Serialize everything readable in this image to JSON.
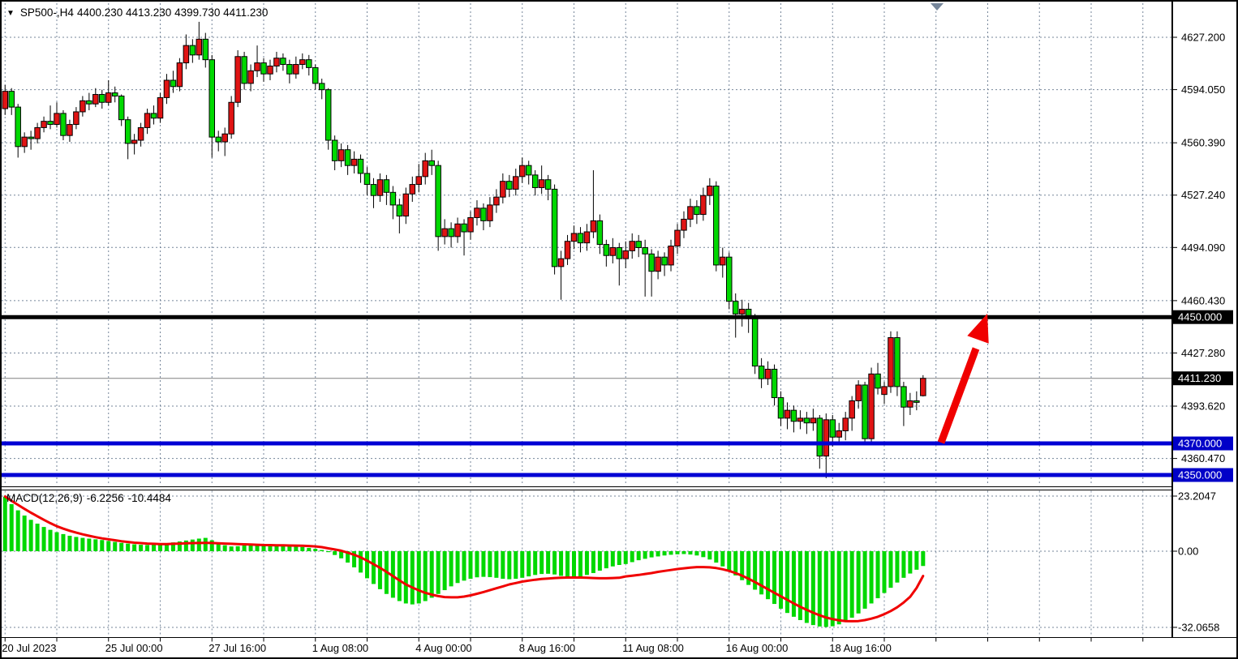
{
  "window": {
    "title_symbol": "SP500-,H4",
    "title_ohlc": "4400.230 4413.230 4399.730 4411.230"
  },
  "colors": {
    "background": "#ffffff",
    "bull": "#e01414",
    "bear": "#00d800",
    "wick": "#000000",
    "grid": "#76869a",
    "text": "#000000",
    "signal_line": "#f00000",
    "histogram": "#00d800",
    "resistance_line": "#000000",
    "support_line": "#0000d4",
    "current_price_line": "#808080",
    "badge_black": "#000000",
    "badge_blue": "#0000c8",
    "arrow": "#f00000",
    "shift_marker": "#76869a"
  },
  "price_axis": {
    "ticks": [
      {
        "text": "4627.200",
        "value": 4627.2
      },
      {
        "text": "4594.050",
        "value": 4594.05
      },
      {
        "text": "4560.390",
        "value": 4560.39
      },
      {
        "text": "4527.240",
        "value": 4527.24
      },
      {
        "text": "4494.090",
        "value": 4494.09
      },
      {
        "text": "4460.430",
        "value": 4460.43
      },
      {
        "text": "4427.280",
        "value": 4427.28
      },
      {
        "text": "4393.620",
        "value": 4393.62
      },
      {
        "text": "4360.470",
        "value": 4360.47
      }
    ],
    "badges": [
      {
        "text": "4450.000",
        "value": 4450.0,
        "bg": "#000000"
      },
      {
        "text": "4411.230",
        "value": 4411.23,
        "bg": "#000000"
      },
      {
        "text": "4370.000",
        "value": 4370.0,
        "bg": "#0000c8"
      },
      {
        "text": "4350.000",
        "value": 4350.0,
        "bg": "#0000c8"
      }
    ]
  },
  "time_axis": {
    "labels": [
      {
        "text": "20 Jul 2023",
        "grid": 0
      },
      {
        "text": "25 Jul 00:00",
        "grid": 2
      },
      {
        "text": "27 Jul 16:00",
        "grid": 4
      },
      {
        "text": "1 Aug 08:00",
        "grid": 6
      },
      {
        "text": "4 Aug 00:00",
        "grid": 8
      },
      {
        "text": "8 Aug 16:00",
        "grid": 10
      },
      {
        "text": "11 Aug 08:00",
        "grid": 12
      },
      {
        "text": "16 Aug 00:00",
        "grid": 14
      },
      {
        "text": "18 Aug 16:00",
        "grid": 16
      }
    ]
  },
  "macd_panel": {
    "name": "MACD(12,26,9)",
    "macd_value": "-6.2256",
    "signal_value": "-10.4484",
    "axis_ticks": [
      {
        "text": "23.2047",
        "value": 23.2047
      },
      {
        "text": "0.00",
        "value": 0
      },
      {
        "text": "-32.0658",
        "value": -32.0658
      }
    ]
  },
  "chart_data": {
    "type": "candlestick",
    "symbol": "SP500-",
    "timeframe": "H4",
    "title": "SP500-,H4 4400.230 4413.230 4399.730 4411.230",
    "current_bar": {
      "open": 4400.23,
      "high": 4413.23,
      "low": 4399.73,
      "close": 4411.23
    },
    "price_range_shown": [
      4350.0,
      4627.2
    ],
    "levels": [
      {
        "name": "resistance",
        "value": 4450.0,
        "color": "#000000",
        "thickness": 5
      },
      {
        "name": "support-upper",
        "value": 4370.0,
        "color": "#0000d4",
        "thickness": 5
      },
      {
        "name": "support-lower",
        "value": 4350.0,
        "color": "#0000d4",
        "thickness": 5
      },
      {
        "name": "current-price",
        "value": 4411.23,
        "color": "#808080",
        "thickness": 1
      }
    ],
    "annotation_arrow": {
      "from_price": 4372,
      "to_price": 4450,
      "color": "#f00000"
    },
    "bars": [
      [
        4582,
        4597,
        4578,
        4593
      ],
      [
        4593,
        4595,
        4578,
        4583
      ],
      [
        4583,
        4585,
        4551,
        4558
      ],
      [
        4558,
        4567,
        4554,
        4564
      ],
      [
        4564,
        4568,
        4556,
        4563
      ],
      [
        4563,
        4573,
        4560,
        4570
      ],
      [
        4570,
        4577,
        4567,
        4574
      ],
      [
        4574,
        4584,
        4569,
        4572
      ],
      [
        4572,
        4586,
        4570,
        4579
      ],
      [
        4579,
        4581,
        4562,
        4565
      ],
      [
        4565,
        4575,
        4561,
        4572
      ],
      [
        4572,
        4583,
        4569,
        4580
      ],
      [
        4580,
        4590,
        4577,
        4587
      ],
      [
        4587,
        4592,
        4581,
        4585
      ],
      [
        4585,
        4595,
        4583,
        4591
      ],
      [
        4591,
        4594,
        4582,
        4586
      ],
      [
        4586,
        4600,
        4584,
        4592
      ],
      [
        4592,
        4596,
        4586,
        4590
      ],
      [
        4590,
        4591,
        4571,
        4575
      ],
      [
        4575,
        4577,
        4550,
        4560
      ],
      [
        4560,
        4566,
        4553,
        4562
      ],
      [
        4562,
        4573,
        4558,
        4570
      ],
      [
        4570,
        4582,
        4566,
        4579
      ],
      [
        4579,
        4584,
        4572,
        4576
      ],
      [
        4576,
        4592,
        4573,
        4589
      ],
      [
        4589,
        4604,
        4585,
        4600
      ],
      [
        4600,
        4606,
        4592,
        4596
      ],
      [
        4596,
        4614,
        4593,
        4611
      ],
      [
        4611,
        4629,
        4607,
        4622
      ],
      [
        4622,
        4626,
        4611,
        4616
      ],
      [
        4616,
        4637,
        4613,
        4626
      ],
      [
        4626,
        4630,
        4608,
        4613
      ],
      [
        4613,
        4616,
        4551,
        4564
      ],
      [
        4564,
        4568,
        4555,
        4561
      ],
      [
        4561,
        4570,
        4552,
        4566
      ],
      [
        4566,
        4590,
        4563,
        4586
      ],
      [
        4586,
        4619,
        4583,
        4615
      ],
      [
        4615,
        4618,
        4594,
        4598
      ],
      [
        4598,
        4610,
        4593,
        4606
      ],
      [
        4606,
        4622,
        4602,
        4611
      ],
      [
        4611,
        4614,
        4599,
        4604
      ],
      [
        4604,
        4613,
        4600,
        4609
      ],
      [
        4609,
        4618,
        4605,
        4614
      ],
      [
        4614,
        4617,
        4606,
        4610
      ],
      [
        4610,
        4613,
        4598,
        4604
      ],
      [
        4604,
        4615,
        4601,
        4610
      ],
      [
        4610,
        4617,
        4607,
        4613
      ],
      [
        4613,
        4616,
        4603,
        4608
      ],
      [
        4608,
        4610,
        4594,
        4598
      ],
      [
        4598,
        4601,
        4588,
        4594
      ],
      [
        4594,
        4595,
        4556,
        4562
      ],
      [
        4562,
        4565,
        4543,
        4549
      ],
      [
        4549,
        4560,
        4545,
        4556
      ],
      [
        4556,
        4559,
        4540,
        4546
      ],
      [
        4546,
        4555,
        4541,
        4550
      ],
      [
        4550,
        4553,
        4535,
        4541
      ],
      [
        4541,
        4545,
        4527,
        4534
      ],
      [
        4534,
        4538,
        4519,
        4527
      ],
      [
        4527,
        4541,
        4523,
        4537
      ],
      [
        4537,
        4540,
        4521,
        4529
      ],
      [
        4529,
        4533,
        4512,
        4521
      ],
      [
        4521,
        4525,
        4503,
        4514
      ],
      [
        4514,
        4532,
        4509,
        4528
      ],
      [
        4528,
        4539,
        4523,
        4534
      ],
      [
        4534,
        4547,
        4529,
        4539
      ],
      [
        4539,
        4554,
        4534,
        4549
      ],
      [
        4549,
        4556,
        4540,
        4546
      ],
      [
        4546,
        4549,
        4492,
        4501
      ],
      [
        4501,
        4512,
        4496,
        4506
      ],
      [
        4506,
        4510,
        4494,
        4501
      ],
      [
        4501,
        4513,
        4497,
        4509
      ],
      [
        4509,
        4512,
        4489,
        4504
      ],
      [
        4504,
        4517,
        4499,
        4513
      ],
      [
        4513,
        4524,
        4508,
        4519
      ],
      [
        4519,
        4522,
        4505,
        4511
      ],
      [
        4511,
        4526,
        4507,
        4521
      ],
      [
        4521,
        4531,
        4516,
        4526
      ],
      [
        4526,
        4541,
        4522,
        4536
      ],
      [
        4536,
        4540,
        4526,
        4531
      ],
      [
        4531,
        4544,
        4527,
        4539
      ],
      [
        4539,
        4551,
        4535,
        4546
      ],
      [
        4546,
        4549,
        4534,
        4540
      ],
      [
        4540,
        4543,
        4527,
        4532
      ],
      [
        4532,
        4546,
        4528,
        4537
      ],
      [
        4537,
        4540,
        4524,
        4531
      ],
      [
        4531,
        4534,
        4477,
        4482
      ],
      [
        4482,
        4492,
        4461,
        4487
      ],
      [
        4487,
        4502,
        4483,
        4498
      ],
      [
        4498,
        4508,
        4493,
        4503
      ],
      [
        4503,
        4507,
        4491,
        4497
      ],
      [
        4497,
        4509,
        4492,
        4504
      ],
      [
        4504,
        4543,
        4500,
        4511
      ],
      [
        4511,
        4515,
        4490,
        4496
      ],
      [
        4496,
        4499,
        4482,
        4489
      ],
      [
        4489,
        4500,
        4484,
        4494
      ],
      [
        4494,
        4497,
        4470,
        4487
      ],
      [
        4487,
        4498,
        4481,
        4492
      ],
      [
        4492,
        4503,
        4487,
        4498
      ],
      [
        4498,
        4502,
        4488,
        4494
      ],
      [
        4494,
        4499,
        4463,
        4490
      ],
      [
        4490,
        4493,
        4463,
        4479
      ],
      [
        4479,
        4492,
        4474,
        4488
      ],
      [
        4488,
        4491,
        4476,
        4483
      ],
      [
        4483,
        4499,
        4479,
        4495
      ],
      [
        4495,
        4509,
        4490,
        4505
      ],
      [
        4505,
        4517,
        4500,
        4512
      ],
      [
        4512,
        4525,
        4507,
        4520
      ],
      [
        4520,
        4524,
        4509,
        4515
      ],
      [
        4515,
        4532,
        4511,
        4527
      ],
      [
        4527,
        4538,
        4521,
        4533
      ],
      [
        4533,
        4536,
        4479,
        4483
      ],
      [
        4483,
        4494,
        4475,
        4488
      ],
      [
        4488,
        4491,
        4455,
        4460
      ],
      [
        4460,
        4465,
        4437,
        4452
      ],
      [
        4452,
        4461,
        4444,
        4455
      ],
      [
        4455,
        4459,
        4440,
        4449
      ],
      [
        4449,
        4452,
        4414,
        4419
      ],
      [
        4419,
        4424,
        4405,
        4411
      ],
      [
        4411,
        4422,
        4407,
        4417
      ],
      [
        4417,
        4420,
        4394,
        4399
      ],
      [
        4399,
        4403,
        4381,
        4386
      ],
      [
        4386,
        4396,
        4379,
        4391
      ],
      [
        4391,
        4394,
        4377,
        4384
      ],
      [
        4384,
        4391,
        4379,
        4386
      ],
      [
        4386,
        4390,
        4376,
        4383
      ],
      [
        4383,
        4392,
        4378,
        4386
      ],
      [
        4386,
        4388,
        4354,
        4362
      ],
      [
        4362,
        4389,
        4348,
        4385
      ],
      [
        4385,
        4388,
        4368,
        4374
      ],
      [
        4374,
        4383,
        4370,
        4378
      ],
      [
        4378,
        4390,
        4372,
        4386
      ],
      [
        4386,
        4400,
        4378,
        4397
      ],
      [
        4397,
        4410,
        4392,
        4407
      ],
      [
        4407,
        4409,
        4371,
        4373
      ],
      [
        4373,
        4418,
        4371,
        4414
      ],
      [
        4414,
        4421,
        4401,
        4405
      ],
      [
        4401,
        4409,
        4395,
        4406
      ],
      [
        4406,
        4441,
        4402,
        4437
      ],
      [
        4437,
        4441,
        4400,
        4406
      ],
      [
        4406,
        4409,
        4381,
        4393
      ],
      [
        4393,
        4402,
        4388,
        4397
      ],
      [
        4397,
        4403,
        4391,
        4396
      ],
      [
        4400.23,
        4413.23,
        4399.73,
        4411.23
      ]
    ],
    "macd": {
      "type": "histogram+line",
      "params": [
        12,
        26,
        9
      ],
      "histogram": [
        22.9,
        19.8,
        17.2,
        15.0,
        13.2,
        11.6,
        10.2,
        9.0,
        8.0,
        7.2,
        6.5,
        6.0,
        5.6,
        5.3,
        5.0,
        4.7,
        4.3,
        3.9,
        3.5,
        3.2,
        2.9,
        2.7,
        2.6,
        2.7,
        2.9,
        3.3,
        3.7,
        4.1,
        4.5,
        4.9,
        5.3,
        5.6,
        4.6,
        3.4,
        2.5,
        2.0,
        2.1,
        2.4,
        2.6,
        2.8,
        2.9,
        2.9,
        2.8,
        2.6,
        2.4,
        2.1,
        1.8,
        1.4,
        1.0,
        0.5,
        -0.4,
        -1.6,
        -3.0,
        -4.8,
        -6.8,
        -9.0,
        -11.4,
        -13.8,
        -16.0,
        -18.0,
        -19.6,
        -21.0,
        -22.0,
        -22.4,
        -22.0,
        -21.0,
        -19.6,
        -18.0,
        -16.4,
        -14.8,
        -13.4,
        -12.4,
        -11.6,
        -11.0,
        -10.8,
        -10.9,
        -11.2,
        -11.6,
        -11.8,
        -11.6,
        -11.2,
        -10.6,
        -10.0,
        -9.6,
        -9.5,
        -9.8,
        -10.4,
        -10.8,
        -10.9,
        -10.6,
        -10.0,
        -9.2,
        -8.2,
        -7.2,
        -6.4,
        -5.8,
        -5.4,
        -4.6,
        -3.8,
        -3.2,
        -2.6,
        -2.2,
        -1.8,
        -1.5,
        -1.3,
        -1.2,
        -1.4,
        -1.8,
        -2.5,
        -3.5,
        -4.8,
        -6.4,
        -8.2,
        -10.2,
        -12.2,
        -14.2,
        -16.2,
        -18.2,
        -20.2,
        -22.2,
        -24.2,
        -26.0,
        -27.6,
        -29.0,
        -30.2,
        -31.1,
        -31.7,
        -31.9,
        -31.6,
        -30.8,
        -29.6,
        -28.0,
        -26.2,
        -24.2,
        -22.0,
        -19.8,
        -17.6,
        -15.4,
        -13.2,
        -11.2,
        -9.4,
        -7.8,
        -6.2256
      ],
      "signal": [
        23.0,
        21.2,
        19.5,
        17.8,
        16.2,
        14.7,
        13.2,
        11.8,
        10.5,
        9.5,
        8.6,
        7.8,
        7.1,
        6.5,
        5.9,
        5.4,
        5.0,
        4.6,
        4.2,
        3.9,
        3.6,
        3.4,
        3.2,
        3.1,
        3.0,
        3.0,
        3.1,
        3.2,
        3.3,
        3.4,
        3.45,
        3.5,
        3.45,
        3.3,
        3.2,
        3.1,
        3.0,
        2.9,
        2.8,
        2.7,
        2.6,
        2.55,
        2.5,
        2.45,
        2.4,
        2.35,
        2.3,
        2.2,
        2.0,
        1.7,
        1.2,
        0.7,
        0.2,
        -0.6,
        -1.5,
        -2.6,
        -4.0,
        -5.5,
        -7.0,
        -8.7,
        -10.5,
        -12.3,
        -14.0,
        -15.3,
        -16.5,
        -17.5,
        -18.3,
        -18.9,
        -19.3,
        -19.4,
        -19.4,
        -19.1,
        -18.6,
        -17.9,
        -17.2,
        -16.4,
        -15.6,
        -14.8,
        -14.0,
        -13.4,
        -12.8,
        -12.4,
        -12.0,
        -11.7,
        -11.5,
        -11.3,
        -11.2,
        -11.1,
        -11.1,
        -11.1,
        -11.2,
        -11.3,
        -11.4,
        -11.4,
        -11.3,
        -11.2,
        -10.6,
        -10.3,
        -10.0,
        -9.6,
        -9.2,
        -8.7,
        -8.3,
        -7.9,
        -7.5,
        -7.2,
        -6.9,
        -6.7,
        -6.7,
        -6.8,
        -7.1,
        -7.6,
        -8.3,
        -9.2,
        -10.3,
        -11.6,
        -13.0,
        -14.5,
        -16.0,
        -17.5,
        -19.0,
        -20.5,
        -22.0,
        -23.4,
        -24.7,
        -25.9,
        -27.0,
        -27.9,
        -28.6,
        -29.1,
        -29.4,
        -29.5,
        -29.4,
        -29.0,
        -28.4,
        -27.6,
        -26.5,
        -25.2,
        -23.6,
        -21.6,
        -19.2,
        -15.5,
        -10.4484
      ]
    }
  }
}
